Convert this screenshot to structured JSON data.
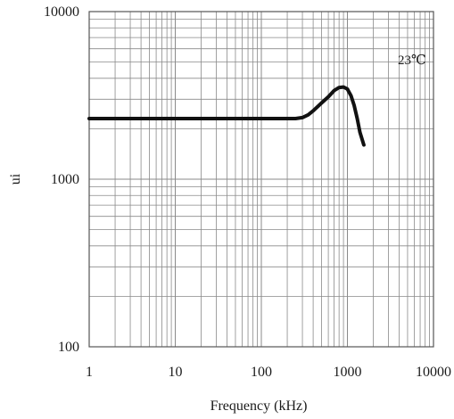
{
  "chart_data": {
    "type": "line",
    "title": "",
    "xlabel": "Frequency (kHz)",
    "ylabel": "ui",
    "xscale": "log",
    "yscale": "log",
    "xlim": [
      1,
      10000
    ],
    "ylim": [
      100,
      10000
    ],
    "x_ticks": [
      "1",
      "10",
      "100",
      "1000",
      "10000"
    ],
    "y_ticks": [
      "100",
      "1000",
      "10000"
    ],
    "grid": true,
    "annotation": "23℃",
    "series": [
      {
        "x": [
          1,
          10,
          100,
          250,
          300,
          350,
          400,
          500,
          600,
          700,
          800,
          900,
          1000,
          1100,
          1200,
          1300,
          1400,
          1550
        ],
        "y": [
          2300,
          2300,
          2300,
          2300,
          2330,
          2420,
          2560,
          2850,
          3100,
          3380,
          3520,
          3550,
          3450,
          3150,
          2750,
          2300,
          1900,
          1600
        ]
      }
    ]
  },
  "colors": {
    "line": "#111111",
    "grid": "#8a8a8a",
    "frame": "#555555"
  }
}
